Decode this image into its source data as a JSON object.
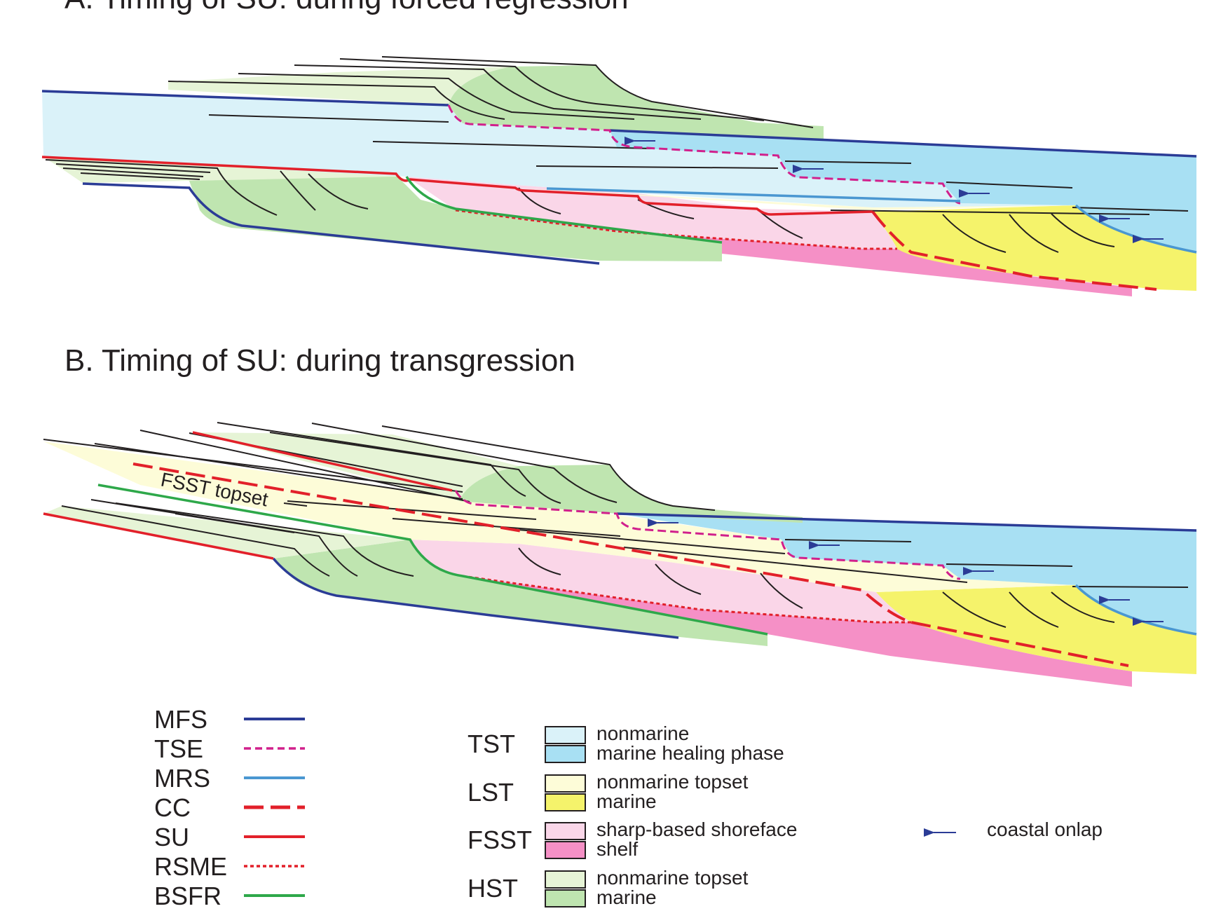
{
  "panel_a": {
    "title": "A. Timing of SU: during forced regression"
  },
  "panel_b": {
    "title": "B. Timing of SU: during transgression",
    "annotation": "FSST topset"
  },
  "colors": {
    "mfs": "#2b3c96",
    "tse": "#d1208c",
    "mrs": "#4a97d1",
    "cc": "#e2202a",
    "su": "#e2202a",
    "rsme": "#e2202a",
    "bsfr": "#2ea84a",
    "tst_nonmarine": "#daf2f9",
    "tst_marine": "#a8e0f3",
    "lst_nonmarine": "#fdfcd8",
    "lst_marine": "#f5f36b",
    "fsst_shoreface": "#fad6e8",
    "fsst_shelf": "#f590c6",
    "hst_nonmarine": "#e6f4d6",
    "hst_marine": "#bfe5b0",
    "onlap": "#2b3c96",
    "black": "#231f20"
  },
  "legend": {
    "surfaces": [
      {
        "key": "mfs",
        "label": "MFS",
        "style": "solid"
      },
      {
        "key": "tse",
        "label": "TSE",
        "style": "dashed"
      },
      {
        "key": "mrs",
        "label": "MRS",
        "style": "solid"
      },
      {
        "key": "cc",
        "label": "CC",
        "style": "long-dashed"
      },
      {
        "key": "su",
        "label": "SU",
        "style": "solid"
      },
      {
        "key": "rsme",
        "label": "RSME",
        "style": "dotted"
      },
      {
        "key": "bsfr",
        "label": "BSFR",
        "style": "solid"
      }
    ],
    "tracts": [
      {
        "label": "TST",
        "upper": "nonmarine",
        "lower": "marine healing phase",
        "upper_color": "tst_nonmarine",
        "lower_color": "tst_marine"
      },
      {
        "label": "LST",
        "upper": "nonmarine topset",
        "lower": "marine",
        "upper_color": "lst_nonmarine",
        "lower_color": "lst_marine"
      },
      {
        "label": "FSST",
        "upper": "sharp-based shoreface",
        "lower": "shelf",
        "upper_color": "fsst_shoreface",
        "lower_color": "fsst_shelf"
      },
      {
        "label": "HST",
        "upper": "nonmarine topset",
        "lower": "marine",
        "upper_color": "hst_nonmarine",
        "lower_color": "hst_marine"
      }
    ],
    "onlap_label": "coastal onlap"
  }
}
